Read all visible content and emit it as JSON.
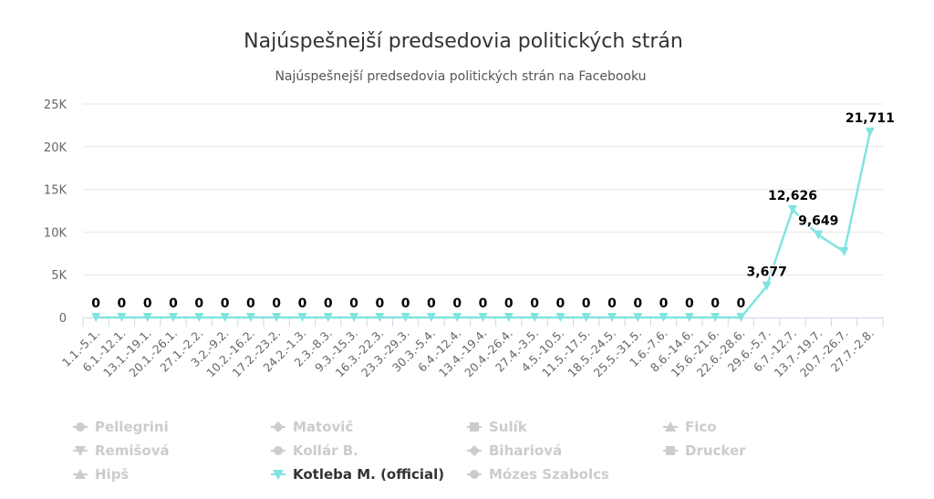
{
  "chart_data": {
    "type": "line",
    "title": "Najúspešnejší predsedovia politických strán",
    "subtitle": "Najúspešnejší predsedovia politických strán na Facebooku",
    "ylim": [
      0,
      25000
    ],
    "yticks": [
      "0",
      "5K",
      "10K",
      "15K",
      "20K",
      "25K"
    ],
    "grid": true,
    "categories": [
      "1.1.-5.1.",
      "6.1.-12.1.",
      "13.1.-19.1.",
      "20.1.-26.1.",
      "27.1.-2.2.",
      "3.2.-9.2.",
      "10.2.-16.2.",
      "17.2.-23.2.",
      "24.2.-1.3.",
      "2.3.-8.3.",
      "9.3.-15.3.",
      "16.3.-22.3.",
      "23.3.-29.3.",
      "30.3.-5.4.",
      "6.4.-12.4.",
      "13.4.-19.4.",
      "20.4.-26.4.",
      "27.4.-3.5.",
      "4.5.-10.5.",
      "11.5.-17.5.",
      "18.5.-24.5.",
      "25.5.-31.5.",
      "1.6.-7.6.",
      "8.6.-14.6.",
      "15.6.-21.6.",
      "22.6.-28.6.",
      "29.6.-5.7.",
      "6.7.-12.7.",
      "13.7.-19.7.",
      "20.7.-26.7.",
      "27.7.-2.8."
    ],
    "series": [
      {
        "name": "Kotleba M. (official)",
        "color": "#80e4e0",
        "marker": "triangle-down",
        "visible": true,
        "values": [
          0,
          0,
          0,
          0,
          0,
          0,
          0,
          0,
          0,
          0,
          0,
          0,
          0,
          0,
          0,
          0,
          0,
          0,
          0,
          0,
          0,
          0,
          0,
          0,
          0,
          0,
          3677,
          12626,
          9649,
          7700,
          21711
        ],
        "data_labels": [
          "0",
          "0",
          "0",
          "0",
          "0",
          "0",
          "0",
          "0",
          "0",
          "0",
          "0",
          "0",
          "0",
          "0",
          "0",
          "0",
          "0",
          "0",
          "0",
          "0",
          "0",
          "0",
          "0",
          "0",
          "0",
          "0",
          "3,677",
          "12,626",
          "9,649",
          "",
          "21,711"
        ]
      }
    ],
    "legend": {
      "position": "bottom",
      "items": [
        {
          "name": "Pellegrini",
          "marker": "circle",
          "active": false
        },
        {
          "name": "Matovič",
          "marker": "diamond",
          "active": false
        },
        {
          "name": "Sulík",
          "marker": "square",
          "active": false
        },
        {
          "name": "Fico",
          "marker": "triangle-up",
          "active": false
        },
        {
          "name": "Remišová",
          "marker": "triangle-down",
          "active": false
        },
        {
          "name": "Kollár B.",
          "marker": "circle",
          "active": false
        },
        {
          "name": "Bihariová",
          "marker": "diamond",
          "active": false
        },
        {
          "name": "Drucker",
          "marker": "square",
          "active": false
        },
        {
          "name": "Hipš",
          "marker": "triangle-up",
          "active": false
        },
        {
          "name": "Kotleba M. (official)",
          "marker": "triangle-down",
          "active": true
        },
        {
          "name": "Mózes Szabolcs",
          "marker": "circle",
          "active": false
        }
      ]
    }
  },
  "colors": {
    "active_series": "#80e4e0",
    "inactive_legend": "#cccccc",
    "active_legend_text": "#333333",
    "grid": "#e6e6e6",
    "axis": "#ccd6eb"
  }
}
